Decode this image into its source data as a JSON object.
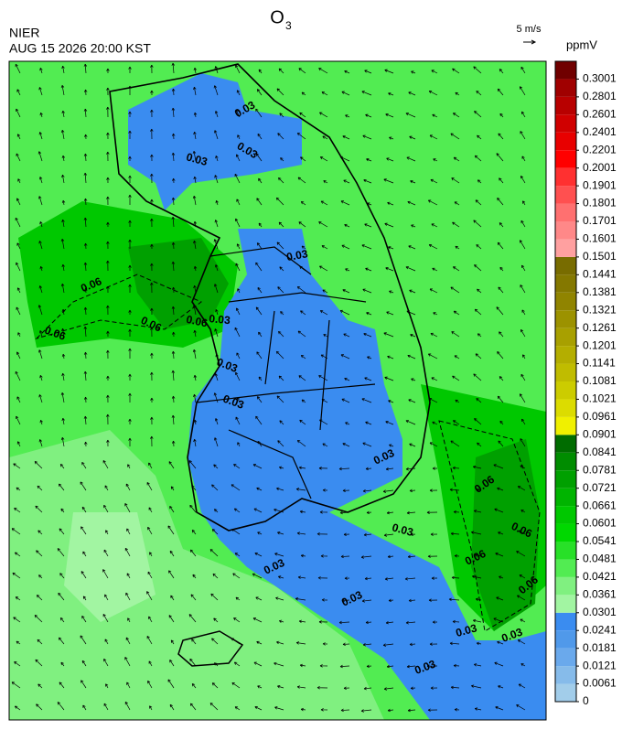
{
  "header": {
    "title": "O",
    "title_subscript": "3",
    "org": "NIER",
    "datetime": "AUG 15 2026 20:00 KST",
    "vector_scale": "5 m/s",
    "unit": "ppmV"
  },
  "colorbar": {
    "levels": [
      0,
      0.0061,
      0.0121,
      0.0181,
      0.0241,
      0.0301,
      0.0361,
      0.0421,
      0.0481,
      0.0541,
      0.0601,
      0.0661,
      0.0721,
      0.0781,
      0.0841,
      0.0901,
      0.0961,
      0.1021,
      0.1081,
      0.1141,
      0.1201,
      0.1261,
      0.1321,
      0.1381,
      0.1441,
      0.1501,
      0.1601,
      0.1701,
      0.1801,
      0.1901,
      0.2001,
      0.2201,
      0.2401,
      0.2601,
      0.2801,
      0.3001
    ],
    "colors": [
      "#a2cdea",
      "#86bbea",
      "#6aa9ec",
      "#5099ea",
      "#3a8cf0",
      "#a2f5a2",
      "#80f080",
      "#52ec52",
      "#28e028",
      "#00d800",
      "#00c800",
      "#00b400",
      "#00a000",
      "#008c00",
      "#006c00",
      "#f0f000",
      "#dcdc00",
      "#cccc00",
      "#c0bc00",
      "#b4ae00",
      "#a8a000",
      "#9c9200",
      "#908400",
      "#847800",
      "#786c00",
      "#ffa0a0",
      "#ff8888",
      "#ff7070",
      "#ff5050",
      "#ff3030",
      "#ff0000",
      "#e80000",
      "#d00000",
      "#b80000",
      "#a00000",
      "#700000"
    ]
  },
  "contour_labels": [
    "0.03",
    "0.06"
  ]
}
